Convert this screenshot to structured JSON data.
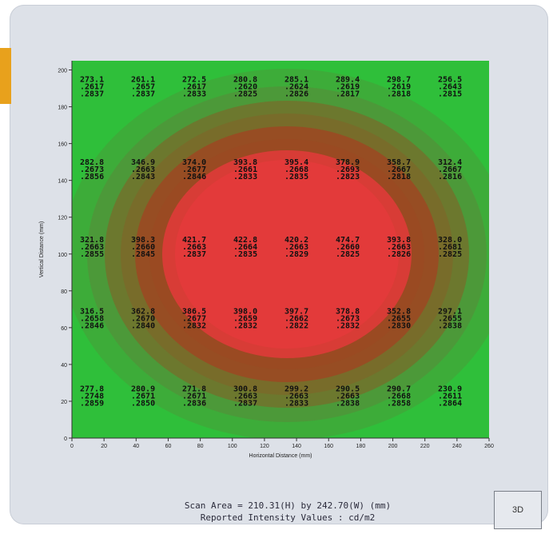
{
  "caption": {
    "line1": "Scan Area = 210.31(H) by 242.70(W)  (mm)",
    "line2": "Reported Intensity Values : cd/m2"
  },
  "button_3d": "3D",
  "colors": {
    "green": "#2fbf3a",
    "dark_green": "#5a8a3a",
    "olive": "#7a6a2a",
    "brown": "#9a4a22",
    "red": "#e33a3a",
    "accent": "#e8a11c"
  },
  "chart_data": {
    "type": "heatmap",
    "xlabel": "Horizontal Distance (mm)",
    "ylabel": "Vertical Distance (mm)",
    "xlim": [
      0,
      260
    ],
    "ylim": [
      0,
      205
    ],
    "xticks": [
      0,
      20,
      40,
      60,
      80,
      100,
      120,
      140,
      160,
      180,
      200,
      220,
      240,
      260
    ],
    "yticks": [
      0,
      20,
      40,
      60,
      80,
      100,
      120,
      140,
      160,
      180,
      200
    ],
    "x": [
      10,
      40,
      70,
      100,
      130,
      160,
      190,
      220,
      250
    ],
    "rows": [
      {
        "y": 190,
        "values": [
          [
            "273.1",
            ".2617",
            ".2837"
          ],
          [
            "261.1",
            ".2657",
            ".2837"
          ],
          [
            "272.5",
            ".2617",
            ".2833"
          ],
          [
            "280.8",
            ".2620",
            ".2825"
          ],
          [
            "285.1",
            ".2624",
            ".2826"
          ],
          [
            "289.4",
            ".2619",
            ".2817"
          ],
          [
            "298.7",
            ".2619",
            ".2818"
          ],
          [
            "256.5",
            ".2643",
            ".2815"
          ]
        ]
      },
      {
        "y": 145,
        "values": [
          [
            "282.8",
            ".2673",
            ".2856"
          ],
          [
            "346.9",
            ".2663",
            ".2843"
          ],
          [
            "374.0",
            ".2677",
            ".2846"
          ],
          [
            "393.8",
            ".2661",
            ".2833"
          ],
          [
            "395.4",
            ".2668",
            ".2835"
          ],
          [
            "378.9",
            ".2693",
            ".2823"
          ],
          [
            "358.7",
            ".2667",
            ".2818"
          ],
          [
            "312.4",
            ".2667",
            ".2816"
          ]
        ]
      },
      {
        "y": 103,
        "values": [
          [
            "321.8",
            ".2663",
            ".2855"
          ],
          [
            "398.3",
            ".2660",
            ".2845"
          ],
          [
            "421.7",
            ".2663",
            ".2837"
          ],
          [
            "422.8",
            ".2664",
            ".2835"
          ],
          [
            "420.2",
            ".2663",
            ".2829"
          ],
          [
            "474.7",
            ".2660",
            ".2825"
          ],
          [
            "393.8",
            ".2663",
            ".2826"
          ],
          [
            "328.0",
            ".2681",
            ".2825"
          ]
        ]
      },
      {
        "y": 64,
        "values": [
          [
            "316.5",
            ".2658",
            ".2846"
          ],
          [
            "362.8",
            ".2670",
            ".2840"
          ],
          [
            "386.5",
            ".2677",
            ".2832"
          ],
          [
            "398.0",
            ".2659",
            ".2832"
          ],
          [
            "397.7",
            ".2662",
            ".2822"
          ],
          [
            "378.8",
            ".2673",
            ".2832"
          ],
          [
            "352.8",
            ".2655",
            ".2830"
          ],
          [
            "297.1",
            ".2655",
            ".2838"
          ]
        ]
      },
      {
        "y": 22,
        "values": [
          [
            "277.8",
            ".2748",
            ".2859"
          ],
          [
            "280.9",
            ".2671",
            ".2850"
          ],
          [
            "271.8",
            ".2671",
            ".2836"
          ],
          [
            "300.8",
            ".2663",
            ".2837"
          ],
          [
            "299.2",
            ".2663",
            ".2833"
          ],
          [
            "290.5",
            ".2663",
            ".2838"
          ],
          [
            "290.7",
            ".2668",
            ".2858"
          ],
          [
            "230.9",
            ".2611",
            ".2864"
          ]
        ]
      }
    ]
  }
}
